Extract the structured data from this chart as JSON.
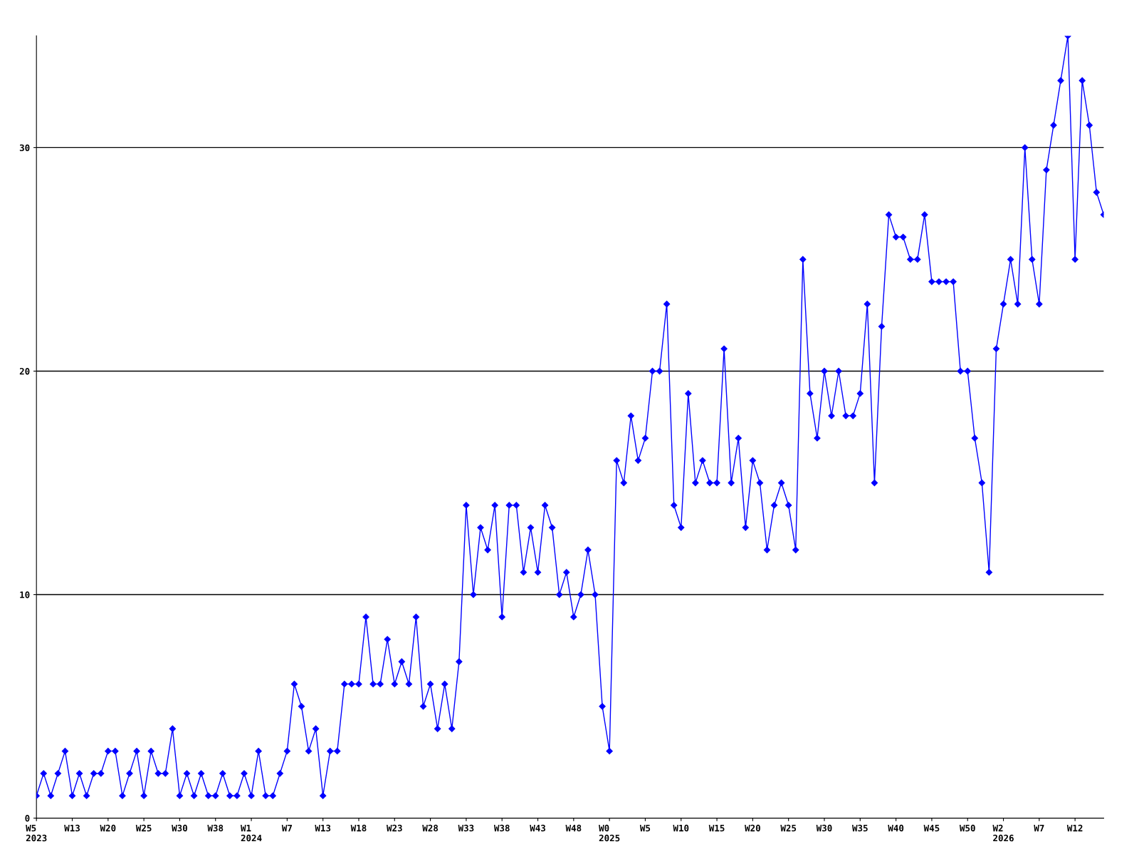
{
  "chart_data": {
    "type": "line",
    "categories": [
      "W5\n2023",
      null,
      null,
      null,
      null,
      "W13",
      null,
      null,
      null,
      null,
      "W20",
      null,
      null,
      null,
      null,
      "W25",
      null,
      null,
      null,
      null,
      "W30",
      null,
      null,
      null,
      null,
      "W38",
      null,
      null,
      null,
      null,
      "W1\n2024",
      null,
      null,
      null,
      null,
      "W7",
      null,
      null,
      null,
      null,
      "W13",
      null,
      null,
      null,
      null,
      "W18",
      null,
      null,
      null,
      null,
      "W23",
      null,
      null,
      null,
      null,
      "W28",
      null,
      null,
      null,
      null,
      "W33",
      null,
      null,
      null,
      null,
      "W38",
      null,
      null,
      null,
      null,
      "W43",
      null,
      null,
      null,
      null,
      "W48",
      null,
      null,
      null,
      null,
      "W0\n2025",
      null,
      null,
      null,
      null,
      "W5",
      null,
      null,
      null,
      null,
      "W10",
      null,
      null,
      null,
      null,
      "W15",
      null,
      null,
      null,
      null,
      "W20",
      null,
      null,
      null,
      null,
      "W25",
      null,
      null,
      null,
      null,
      "W30",
      null,
      null,
      null,
      null,
      "W35",
      null,
      null,
      null,
      null,
      "W40",
      null,
      null,
      null,
      null,
      "W45",
      null,
      null,
      null,
      null,
      "W50",
      null,
      null,
      null,
      null,
      "W2\n2026",
      null,
      null,
      null,
      null,
      "W7",
      null,
      null,
      null,
      null,
      "W12",
      null,
      null,
      null,
      null
    ],
    "series": [
      {
        "color": "#0000ff",
        "values": [
          1,
          2,
          1,
          2,
          3,
          1,
          2,
          1,
          2,
          2,
          3,
          3,
          1,
          2,
          3,
          1,
          3,
          2,
          2,
          4,
          1,
          2,
          1,
          2,
          1,
          1,
          2,
          1,
          1,
          2,
          1,
          3,
          1,
          1,
          2,
          3,
          6,
          5,
          3,
          4,
          1,
          3,
          3,
          6,
          6,
          6,
          9,
          6,
          6,
          8,
          6,
          7,
          6,
          9,
          5,
          6,
          4,
          6,
          4,
          7,
          14,
          10,
          13,
          12,
          14,
          9,
          14,
          14,
          11,
          13,
          11,
          14,
          13,
          10,
          11,
          9,
          10,
          12,
          10,
          5,
          3,
          16,
          15,
          18,
          16,
          17,
          20,
          20,
          23,
          14,
          13,
          19,
          15,
          16,
          15,
          15,
          21,
          15,
          17,
          13,
          16,
          15,
          12,
          14,
          15,
          14,
          12,
          25,
          19,
          17,
          20,
          18,
          20,
          18,
          18,
          19,
          23,
          15,
          22,
          27,
          26,
          26,
          25,
          25,
          27,
          24,
          24,
          24,
          24,
          20,
          20,
          17,
          15,
          11,
          21,
          23,
          25,
          23,
          30,
          25,
          23,
          29,
          31,
          33,
          35,
          25,
          33,
          31,
          28,
          27
        ]
      }
    ],
    "ylim": [
      0,
      35
    ],
    "yticks": [
      0,
      10,
      20,
      30
    ],
    "grid": "y",
    "marker": "diamond",
    "line_style": "solid"
  }
}
